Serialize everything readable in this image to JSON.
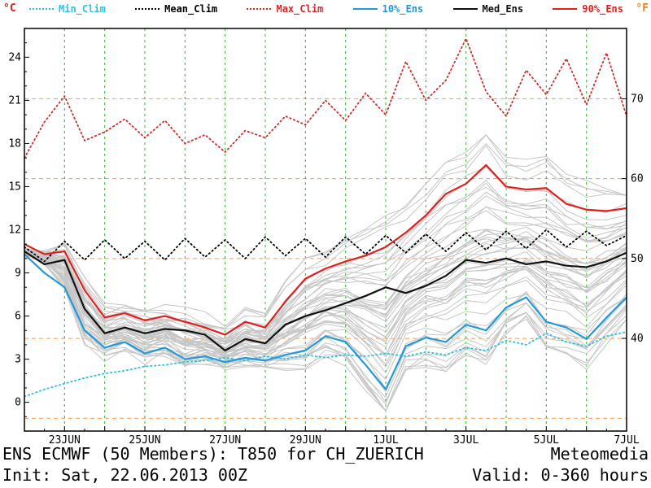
{
  "footer": {
    "title": "ENS ECMWF (50 Members): T850 for CH_ZUERICH",
    "init": "Init: Sat, 22.06.2013 00Z",
    "brand": "Meteomedia",
    "valid": "Valid: 0-360 hours"
  },
  "chart_data": {
    "type": "line",
    "title": "ENS ECMWF (50 Members): T850 for CH_ZUERICH",
    "subtitle": "Init: Sat, 22.06.2013 00Z, Valid: 0-360 hours",
    "ylabel_left": "°C",
    "ylabel_right": "°F",
    "ylim_c": [
      -2,
      26
    ],
    "yticks_c": [
      0,
      3,
      6,
      9,
      12,
      15,
      18,
      21,
      24
    ],
    "ytick_labels_f": [
      40,
      50,
      60,
      70
    ],
    "fahrenheit_gridlines_f": [
      30,
      40,
      50,
      60,
      70
    ],
    "x_hours_end": 360,
    "x_step_hours": 12,
    "xticks": [
      {
        "label": "23JUN",
        "hour": 24
      },
      {
        "label": "25JUN",
        "hour": 72
      },
      {
        "label": "27JUN",
        "hour": 120
      },
      {
        "label": "29JUN",
        "hour": 168
      },
      {
        "label": "1JUL",
        "hour": 216
      },
      {
        "label": "3JUL",
        "hour": 264
      },
      {
        "label": "5JUL",
        "hour": 312
      },
      {
        "label": "7JUL",
        "hour": 360
      }
    ],
    "day_gridline_hours": [
      24,
      48,
      72,
      96,
      120,
      144,
      168,
      192,
      216,
      240,
      264,
      288,
      312,
      336
    ],
    "colors": {
      "grid_vertical": "#2db52d",
      "grid_horizontal": "#ff9a3d",
      "frame": "#000000",
      "ensemble_member": "#c6c6c6"
    },
    "series": [
      {
        "name": "Min_Clim",
        "color": "#2fc1e3",
        "style": "dotted",
        "values": [
          0.4,
          0.9,
          1.3,
          1.7,
          2.0,
          2.2,
          2.5,
          2.6,
          2.8,
          2.9,
          3.1,
          2.9,
          3.2,
          3.0,
          3.3,
          3.1,
          3.3,
          3.2,
          3.4,
          3.2,
          3.5,
          3.3,
          3.8,
          3.6,
          4.3,
          4.0,
          4.8,
          4.2,
          3.9,
          4.6,
          4.9
        ]
      },
      {
        "name": "Mean_Clim",
        "color": "#000000",
        "style": "dotted",
        "values": [
          10.8,
          9.8,
          11.2,
          9.9,
          11.3,
          10.0,
          11.2,
          9.9,
          11.4,
          10.1,
          11.3,
          10.0,
          11.5,
          10.2,
          11.4,
          10.1,
          11.5,
          10.3,
          11.6,
          10.4,
          11.7,
          10.5,
          11.8,
          10.6,
          11.9,
          10.7,
          12.0,
          10.8,
          11.9,
          10.9,
          11.6
        ]
      },
      {
        "name": "Max_Clim",
        "color": "#cf2b2b",
        "style": "dotted",
        "values": [
          17.0,
          19.5,
          21.3,
          18.2,
          18.8,
          19.7,
          18.4,
          19.6,
          18.0,
          18.6,
          17.4,
          18.9,
          18.4,
          19.9,
          19.3,
          21.0,
          19.6,
          21.5,
          20.0,
          23.7,
          21.0,
          22.4,
          25.3,
          21.6,
          19.9,
          23.1,
          21.4,
          23.9,
          20.7,
          24.3,
          19.9
        ]
      },
      {
        "name": "10%_Ens",
        "color": "#2499d8",
        "style": "solid",
        "values": [
          10.3,
          9.0,
          8.0,
          5.0,
          3.8,
          4.2,
          3.4,
          3.8,
          3.0,
          3.2,
          2.8,
          3.1,
          2.9,
          3.3,
          3.6,
          4.6,
          4.2,
          2.6,
          0.9,
          3.9,
          4.5,
          4.2,
          5.4,
          5.0,
          6.6,
          7.3,
          5.6,
          5.2,
          4.4,
          5.9,
          7.3
        ]
      },
      {
        "name": "Med_Ens",
        "color": "#111111",
        "style": "solid",
        "values": [
          10.5,
          9.6,
          9.9,
          6.5,
          4.8,
          5.2,
          4.8,
          5.1,
          5.0,
          4.7,
          3.6,
          4.4,
          4.1,
          5.4,
          6.0,
          6.4,
          6.9,
          7.4,
          8.0,
          7.6,
          8.1,
          8.8,
          9.9,
          9.7,
          10.0,
          9.6,
          9.8,
          9.5,
          9.4,
          9.8,
          10.4
        ]
      },
      {
        "name": "90%_Ens",
        "color": "#e01f1f",
        "style": "solid",
        "values": [
          11.0,
          10.3,
          10.5,
          7.8,
          5.9,
          6.2,
          5.7,
          6.0,
          5.6,
          5.2,
          4.7,
          5.6,
          5.2,
          7.0,
          8.6,
          9.3,
          9.8,
          10.2,
          10.8,
          11.8,
          13.0,
          14.5,
          15.2,
          16.5,
          15.0,
          14.8,
          14.9,
          13.8,
          13.4,
          13.3,
          13.5
        ]
      }
    ],
    "ensemble": {
      "count": 50,
      "seed": 20130622
    }
  }
}
